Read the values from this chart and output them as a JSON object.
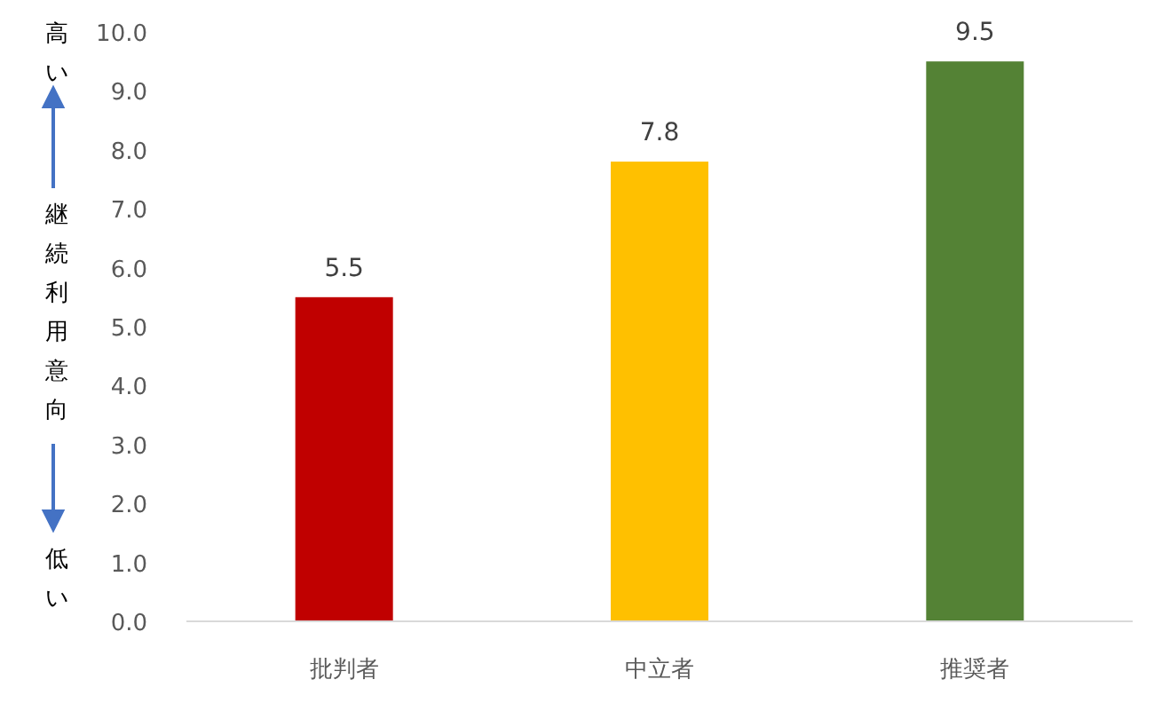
{
  "chart_data": {
    "type": "bar",
    "ylabel": "継続利用意向",
    "annotations": [
      "高い",
      "低い"
    ],
    "categories": [
      "批判者",
      "中立者",
      "推奨者"
    ],
    "values": [
      5.5,
      7.8,
      9.5
    ],
    "colors": [
      "#c00000",
      "#ffc000",
      "#548235"
    ],
    "ylim": [
      0,
      10
    ],
    "yticks": [
      {
        "value": 0,
        "label": "0.0"
      },
      {
        "value": 1,
        "label": "1.0"
      },
      {
        "value": 2,
        "label": "2.0"
      },
      {
        "value": 3,
        "label": "3.0"
      },
      {
        "value": 4,
        "label": "4.0"
      },
      {
        "value": 5,
        "label": "5.0"
      },
      {
        "value": 6,
        "label": "6.0"
      },
      {
        "value": 7,
        "label": "7.0"
      },
      {
        "value": 8,
        "label": "8.0"
      },
      {
        "value": 9,
        "label": "9.0"
      },
      {
        "value": 10,
        "label": "10.0"
      }
    ],
    "data_labels": true,
    "grid": false
  }
}
